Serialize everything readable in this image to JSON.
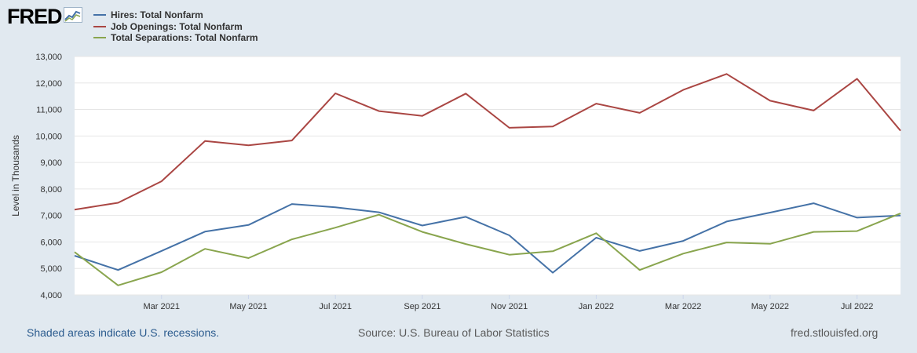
{
  "brand": {
    "logo_text": "FRED"
  },
  "colors": {
    "background": "#e1e9f0",
    "plot_background": "#ffffff",
    "grid": "#e6e6e6",
    "axis_text": "#333333"
  },
  "chart_data": {
    "type": "line",
    "ylabel": "Level in Thousands",
    "ylim": [
      4000,
      13000
    ],
    "yticks": [
      4000,
      5000,
      6000,
      7000,
      8000,
      9000,
      10000,
      11000,
      12000,
      13000
    ],
    "ytick_labels": [
      "4,000",
      "5,000",
      "6,000",
      "7,000",
      "8,000",
      "9,000",
      "10,000",
      "11,000",
      "12,000",
      "13,000"
    ],
    "x": [
      "2021-01",
      "2021-02",
      "2021-03",
      "2021-04",
      "2021-05",
      "2021-06",
      "2021-07",
      "2021-08",
      "2021-09",
      "2021-10",
      "2021-11",
      "2021-12",
      "2022-01",
      "2022-02",
      "2022-03",
      "2022-04",
      "2022-05",
      "2022-06",
      "2022-07",
      "2022-08"
    ],
    "xtick_labels": [
      {
        "label": "Mar 2021",
        "index": 2
      },
      {
        "label": "May 2021",
        "index": 4
      },
      {
        "label": "Jul 2021",
        "index": 6
      },
      {
        "label": "Sep 2021",
        "index": 8
      },
      {
        "label": "Nov 2021",
        "index": 10
      },
      {
        "label": "Jan 2022",
        "index": 12
      },
      {
        "label": "Mar 2022",
        "index": 14
      },
      {
        "label": "May 2022",
        "index": 16
      },
      {
        "label": "Jul 2022",
        "index": 18
      }
    ],
    "grid": true,
    "series": [
      {
        "name": "Hires: Total Nonfarm",
        "color": "#4572a7",
        "values": [
          5480,
          4940,
          5660,
          6390,
          6640,
          7430,
          7310,
          7120,
          6620,
          6950,
          6250,
          4840,
          6160,
          5660,
          6040,
          6770,
          7110,
          7460,
          6920,
          7000
        ]
      },
      {
        "name": "Job Openings: Total Nonfarm",
        "color": "#aa4643",
        "values": [
          7220,
          7480,
          8290,
          9810,
          9650,
          9830,
          11610,
          10940,
          10760,
          11600,
          10310,
          10360,
          11220,
          10870,
          11740,
          12340,
          11330,
          10960,
          12160,
          10200
        ]
      },
      {
        "name": "Total Separations: Total Nonfarm",
        "color": "#89a54e",
        "values": [
          5620,
          4360,
          4860,
          5740,
          5390,
          6100,
          6540,
          7030,
          6380,
          5920,
          5520,
          5650,
          6330,
          4940,
          5560,
          5980,
          5930,
          6380,
          6410,
          7080
        ]
      }
    ]
  },
  "footer": {
    "recession_note": "Shaded areas indicate U.S. recessions.",
    "source": "Source: U.S. Bureau of Labor Statistics",
    "site": "fred.stlouisfed.org"
  }
}
